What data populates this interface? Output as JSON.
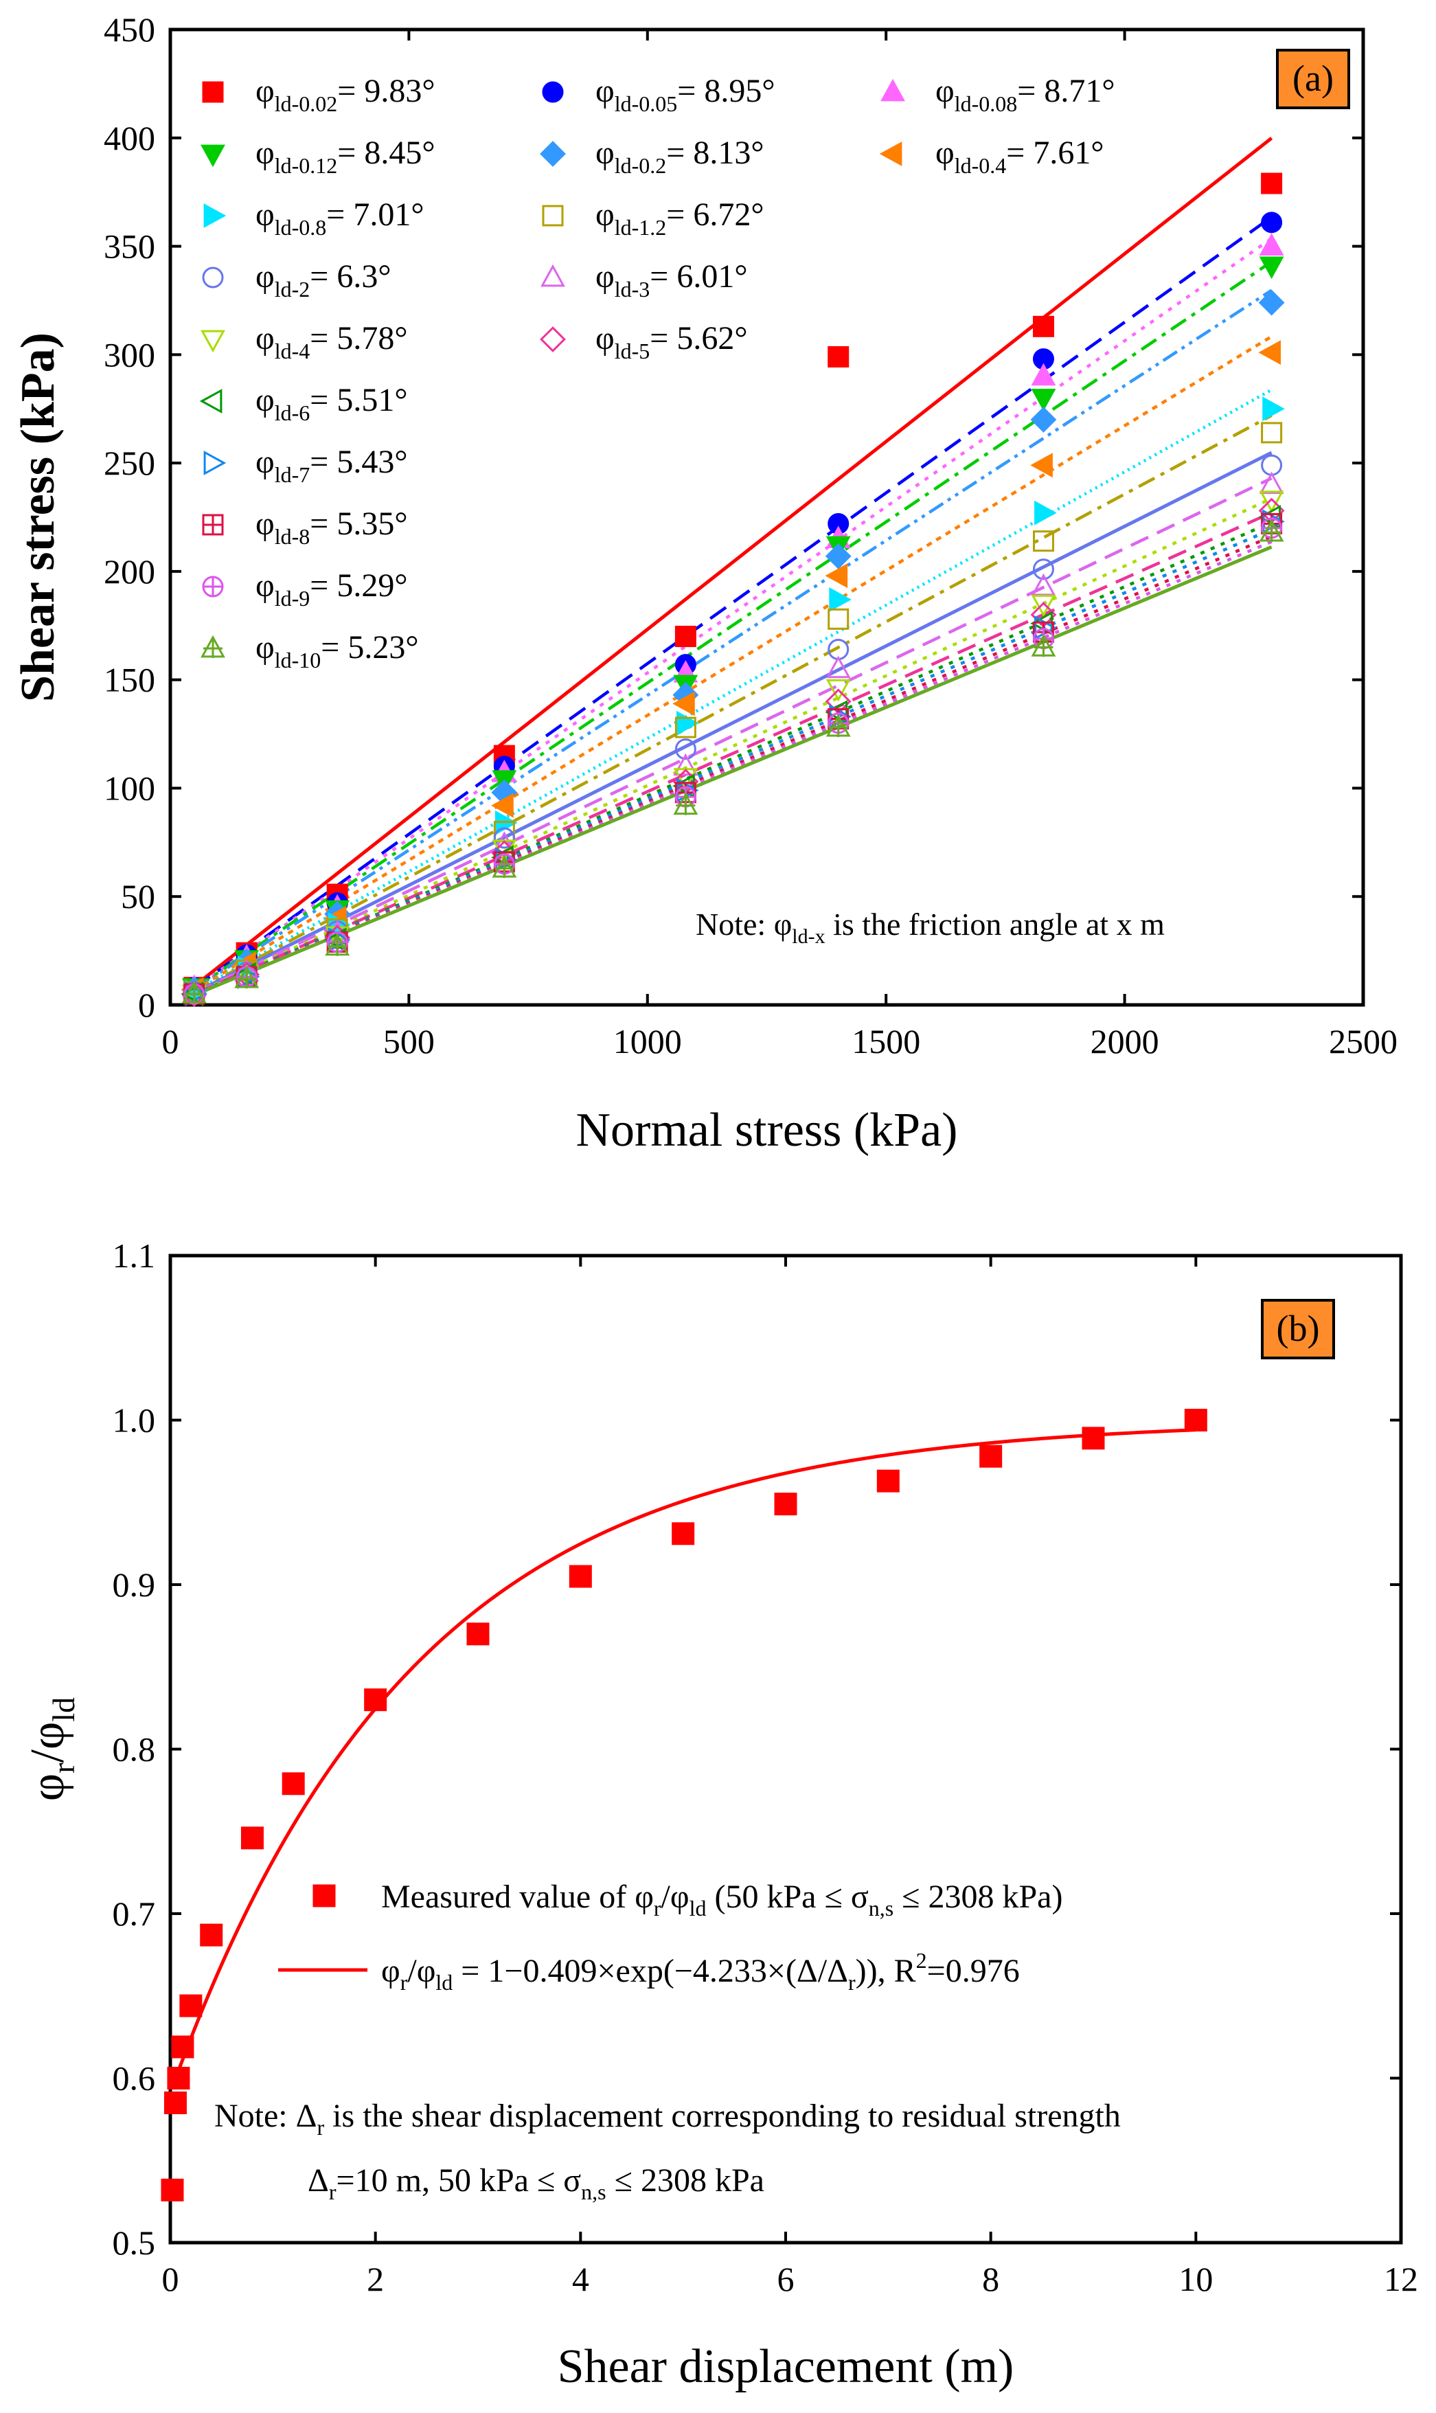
{
  "chart_data": [
    {
      "id": "a",
      "type": "scatter",
      "panel_label": "(a)",
      "xlabel": "Normal stress (kPa)",
      "ylabel": "Shear stress (kPa)",
      "xlim": [
        0,
        2500
      ],
      "ylim": [
        0,
        450
      ],
      "xticks": [
        0,
        500,
        1000,
        1500,
        2000,
        2500
      ],
      "yticks": [
        0,
        50,
        100,
        150,
        200,
        250,
        300,
        350,
        400,
        450
      ],
      "x": [
        50,
        160,
        350,
        700,
        1080,
        1400,
        1830,
        2308
      ],
      "note": {
        "prefix": "Note: ",
        "sym": "φ",
        "sub": "ld-x",
        "rest": " is the friction angle at x m"
      },
      "series": [
        {
          "name": "ld-0.02",
          "label_text": "= 9.83°",
          "angle_deg": 9.83,
          "color": "#ff0000",
          "marker": "square-filled",
          "line": "solid",
          "values": [
            8,
            24,
            51,
            115,
            170,
            299,
            313,
            379
          ]
        },
        {
          "name": "ld-0.05",
          "label_text": "= 8.95°",
          "angle_deg": 8.95,
          "color": "#0000ff",
          "marker": "circle-filled",
          "line": "dash",
          "values": [
            8,
            23,
            47,
            110,
            157,
            222,
            298,
            361
          ]
        },
        {
          "name": "ld-0.08",
          "label_text": "= 8.71°",
          "angle_deg": 8.71,
          "color": "#ff66ff",
          "marker": "triangle-up-filled",
          "line": "dot",
          "values": [
            8,
            22,
            45,
            107,
            153,
            215,
            290,
            350
          ]
        },
        {
          "name": "ld-0.12",
          "label_text": "= 8.45°",
          "angle_deg": 8.45,
          "color": "#00cc00",
          "marker": "triangle-down-filled",
          "line": "dashdot",
          "values": [
            8,
            21,
            44,
            104,
            148,
            212,
            280,
            341
          ]
        },
        {
          "name": "ld-0.2",
          "label_text": "= 8.13°",
          "angle_deg": 8.13,
          "color": "#3399ff",
          "marker": "diamond-filled",
          "line": "dashdotdot",
          "values": [
            7,
            20,
            42,
            98,
            143,
            207,
            270,
            324
          ]
        },
        {
          "name": "ld-0.4",
          "label_text": "= 7.61°",
          "angle_deg": 7.61,
          "color": "#ff7f00",
          "marker": "triangle-left-filled",
          "line": "shortdot",
          "values": [
            7,
            19,
            40,
            92,
            139,
            198,
            249,
            301
          ]
        },
        {
          "name": "ld-0.8",
          "label_text": "= 7.01°",
          "angle_deg": 7.01,
          "color": "#00e5ff",
          "marker": "triangle-right-filled",
          "line": "finedot",
          "values": [
            6,
            17,
            37,
            84,
            130,
            187,
            227,
            275
          ]
        },
        {
          "name": "ld-1.2",
          "label_text": "= 6.72°",
          "angle_deg": 6.72,
          "color": "#b3a000",
          "marker": "square-open",
          "line": "dashdot",
          "values": [
            6,
            16,
            35,
            80,
            128,
            178,
            214,
            264
          ]
        },
        {
          "name": "ld-2",
          "label_text": "= 6.3°",
          "angle_deg": 6.3,
          "color": "#6677ee",
          "marker": "circle-open",
          "line": "solid",
          "values": [
            6,
            15,
            34,
            77,
            118,
            164,
            201,
            249
          ]
        },
        {
          "name": "ld-3",
          "label_text": "= 6.01°",
          "angle_deg": 6.01,
          "color": "#dd66ee",
          "marker": "triangle-up-open",
          "line": "dash",
          "values": [
            5,
            15,
            33,
            74,
            110,
            155,
            193,
            240
          ]
        },
        {
          "name": "ld-4",
          "label_text": "= 5.78°",
          "angle_deg": 5.78,
          "color": "#aadd00",
          "marker": "triangle-down-open",
          "line": "dot",
          "values": [
            5,
            14,
            32,
            72,
            105,
            146,
            185,
            233
          ]
        },
        {
          "name": "ld-5",
          "label_text": "= 5.62°",
          "angle_deg": 5.62,
          "color": "#ee3399",
          "marker": "diamond-open",
          "line": "dash",
          "values": [
            5,
            14,
            31,
            70,
            103,
            140,
            180,
            228
          ]
        },
        {
          "name": "ld-6",
          "label_text": "= 5.51°",
          "angle_deg": 5.51,
          "color": "#009900",
          "marker": "triangle-left-open",
          "line": "dot",
          "values": [
            5,
            14,
            30,
            68,
            101,
            135,
            176,
            225
          ]
        },
        {
          "name": "ld-7",
          "label_text": "= 5.43°",
          "angle_deg": 5.43,
          "color": "#1188ee",
          "marker": "triangle-right-open",
          "line": "dot",
          "values": [
            5,
            13,
            30,
            67,
            99,
            133,
            174,
            223
          ]
        },
        {
          "name": "ld-8",
          "label_text": "= 5.35°",
          "angle_deg": 5.35,
          "color": "#dd1144",
          "marker": "square-plus",
          "line": "dot",
          "values": [
            5,
            13,
            29,
            66,
            98,
            132,
            172,
            222
          ]
        },
        {
          "name": "ld-9",
          "label_text": "= 5.29°",
          "angle_deg": 5.29,
          "color": "#dd55ee",
          "marker": "circle-plus",
          "line": "dot",
          "values": [
            5,
            13,
            29,
            65,
            96,
            130,
            169,
            220
          ]
        },
        {
          "name": "ld-10",
          "label_text": "= 5.23°",
          "angle_deg": 5.23,
          "color": "#66aa22",
          "marker": "triangle-plus",
          "line": "solid",
          "values": [
            5,
            12,
            27,
            63,
            92,
            128,
            165,
            218
          ]
        }
      ]
    },
    {
      "id": "b",
      "type": "scatter",
      "panel_label": "(b)",
      "xlabel": "Shear displacement (m)",
      "xlim": [
        0,
        12
      ],
      "ylim": [
        0.5,
        1.1
      ],
      "xticks": [
        0,
        2,
        4,
        6,
        8,
        10,
        12
      ],
      "yticks": [
        "0.5",
        "0.6",
        "0.7",
        "0.8",
        "0.9",
        "1.0",
        "1.1"
      ],
      "measured": {
        "label": {
          "t1": "Measured value of φ",
          "s1": "r",
          "t2": "/φ",
          "s2": "ld",
          "t3": "  (50 kPa ≤ σ",
          "s3": "n,s",
          "t4": " ≤ 2308 kPa)"
        },
        "color": "#ff0000",
        "x": [
          0.02,
          0.05,
          0.08,
          0.12,
          0.2,
          0.4,
          0.8,
          1.2,
          2,
          3,
          4,
          5,
          6,
          7,
          8,
          9,
          10
        ],
        "y": [
          0.532,
          0.585,
          0.6,
          0.619,
          0.644,
          0.687,
          0.746,
          0.779,
          0.83,
          0.87,
          0.905,
          0.931,
          0.949,
          0.963,
          0.978,
          0.989,
          1.0
        ]
      },
      "fit": {
        "label": {
          "t1": "φ",
          "s1": "r",
          "t2": "/φ",
          "s2": "ld",
          "t3": " = 1−0.409×exp(−4.233×(Δ/Δ",
          "s3": "r",
          "t4": ")), R",
          "sup": "2",
          "t5": "=0.976"
        },
        "color": "#ff0000",
        "a": 0.409,
        "b": 4.233,
        "dr": 10,
        "r2": 0.976
      },
      "note": {
        "prefix": "Note: Δ",
        "sub1": "r",
        "rest1": " is the shear displacement corresponding to residual strength",
        "l2a": "Δ",
        "l2sub": "r",
        "l2b": "=10 m, 50 kPa ≤ σ",
        "l2sub2": "n,s",
        "l2c": " ≤ 2308 kPa"
      }
    }
  ]
}
